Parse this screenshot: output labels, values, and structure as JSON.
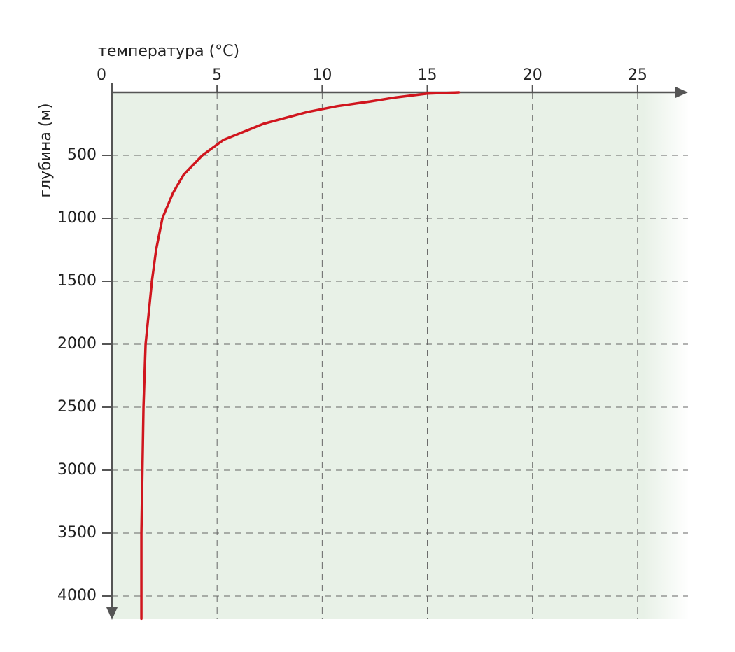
{
  "chart_data": {
    "type": "line",
    "title": "температура (°C)",
    "y_label": "глубина (м)",
    "x": [
      0,
      10,
      40,
      72,
      110,
      156,
      250,
      378,
      500,
      656,
      800,
      1000,
      1250,
      1500,
      2000,
      2500,
      3000,
      3500,
      4000,
      4180
    ],
    "series": [
      {
        "color": "#d0161e",
        "values": [
          16.5,
          15,
          13.5,
          12.3,
          10.7,
          9.3,
          7.2,
          5.3,
          4.3,
          3.4,
          2.9,
          2.4,
          2.1,
          1.9,
          1.6,
          1.5,
          1.45,
          1.4,
          1.4,
          1.4
        ]
      }
    ],
    "xlim": [
      0,
      27.4
    ],
    "xticks": [
      0,
      5,
      10,
      15,
      20,
      25
    ],
    "ylim": [
      0,
      4200
    ],
    "yticks": [
      500,
      1000,
      1500,
      2000,
      2500,
      3000,
      3500,
      4000
    ],
    "grid": true,
    "background": "#e8f1e7"
  }
}
